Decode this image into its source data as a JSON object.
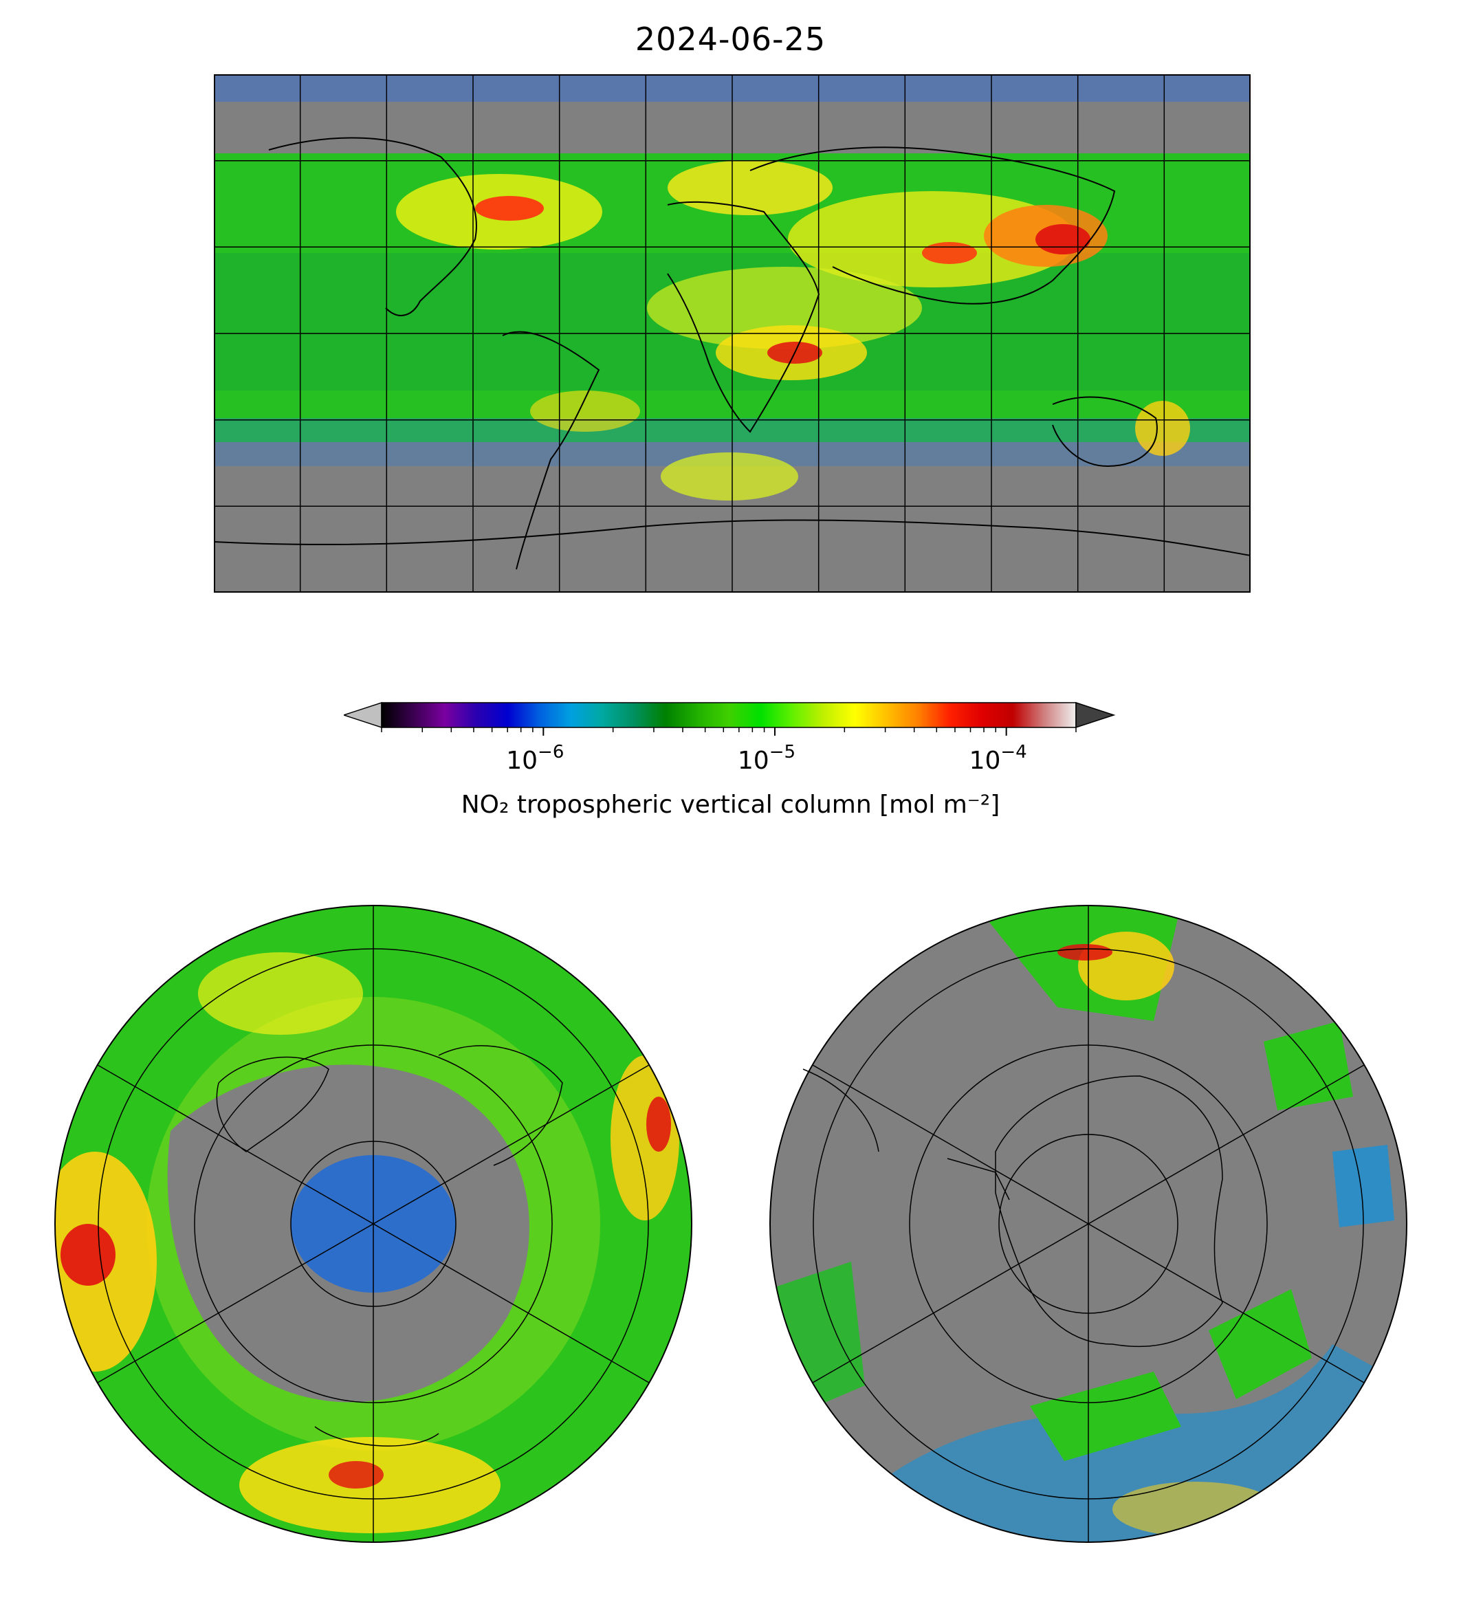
{
  "title": "2024-06-25",
  "colorbar": {
    "label": "NO₂ tropospheric vertical column [mol m⁻²]",
    "scale": "log",
    "range": [
      2e-07,
      0.0002
    ],
    "ticks": [
      {
        "value": 1e-06,
        "base": "10",
        "exp": "−6"
      },
      {
        "value": 1e-05,
        "base": "10",
        "exp": "−5"
      },
      {
        "value": 0.0001,
        "base": "10",
        "exp": "−4"
      }
    ],
    "colors": [
      "#000000",
      "#3a0050",
      "#7a00a0",
      "#2a00b0",
      "#0000d0",
      "#0060e0",
      "#00a0e0",
      "#00a8a0",
      "#009060",
      "#008000",
      "#20b000",
      "#40d000",
      "#00e000",
      "#60f000",
      "#c0f000",
      "#ffff00",
      "#ffc000",
      "#ff8000",
      "#ff2000",
      "#e00000",
      "#c00000",
      "#d08080",
      "#f0f0f0"
    ],
    "under_color": "#c0c0c0",
    "over_color": "#404040"
  },
  "maps": {
    "global": {
      "projection": "plate-carree",
      "land_missing_color": "#808080"
    },
    "north": {
      "projection": "north-polar-stereographic"
    },
    "south": {
      "projection": "south-polar-stereographic"
    }
  }
}
